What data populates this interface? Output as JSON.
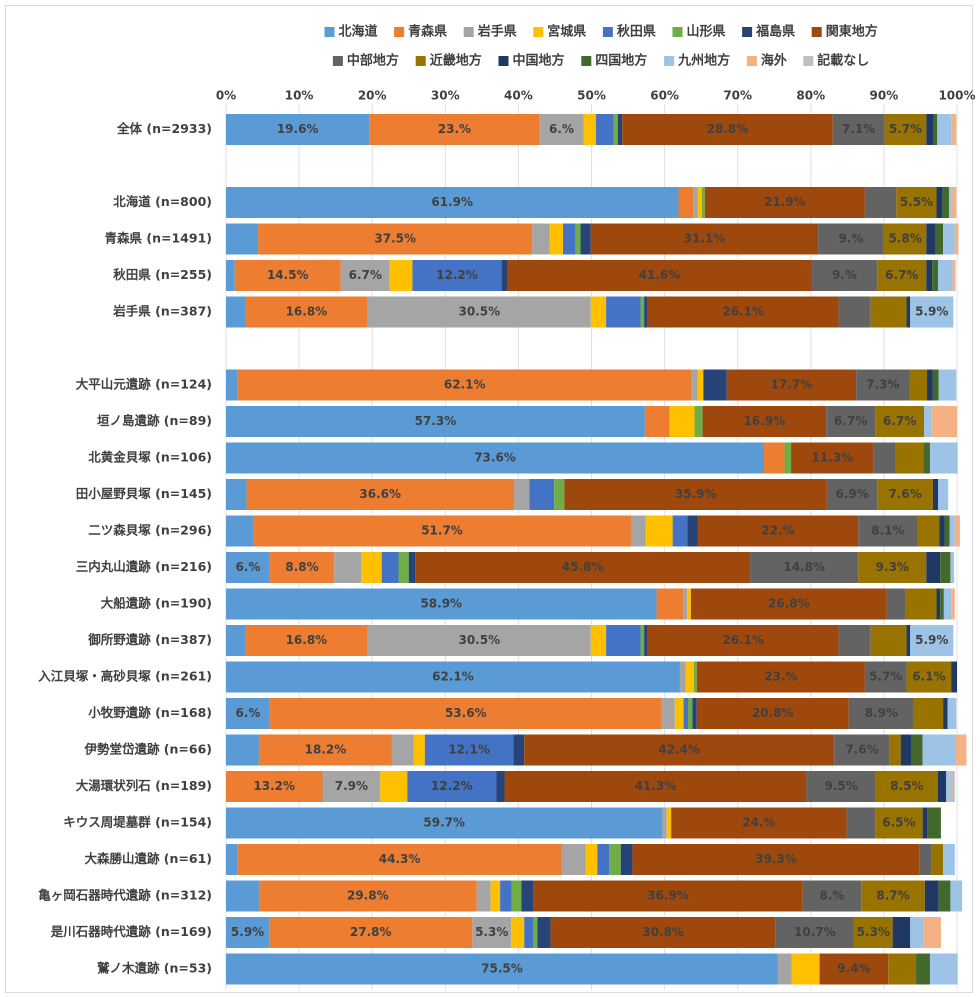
{
  "chart_data": {
    "type": "bar",
    "orientation": "horizontal",
    "stacked": "percent",
    "xlim": [
      0,
      100
    ],
    "x_ticks": [
      "0%",
      "10%",
      "20%",
      "30%",
      "40%",
      "50%",
      "60%",
      "70%",
      "80%",
      "90%",
      "100%"
    ],
    "gridlines": true,
    "legend_position": "top",
    "categories": [
      "全体 (n=2933)",
      "",
      "北海道 (n=800)",
      "青森県 (n=1491)",
      "秋田県 (n=255)",
      "岩手県 (n=387)",
      "",
      "大平山元遺跡 (n=124)",
      "垣ノ島遺跡 (n=89)",
      "北黄金貝塚 (n=106)",
      "田小屋野貝塚 (n=145)",
      "二ツ森貝塚 (n=296)",
      "三内丸山遺跡 (n=216)",
      "大船遺跡 (n=190)",
      "御所野遺跡 (n=387)",
      "入江貝塚・高砂貝塚 (n=261)",
      "小牧野遺跡 (n=168)",
      "伊勢堂岱遺跡 (n=66)",
      "大湯環状列石 (n=189)",
      "キウス周堤墓群 (n=154)",
      "大森勝山遺跡 (n=61)",
      "亀ヶ岡石器時代遺跡 (n=312)",
      "是川石器時代遺跡 (n=169)",
      "鷲ノ木遺跡 (n=53)"
    ],
    "series": [
      {
        "name": "北海道",
        "color": "#5b9bd5",
        "values": [
          19.6,
          null,
          61.9,
          4.4,
          1.2,
          2.6,
          null,
          1.6,
          57.3,
          73.6,
          2.8,
          3.7,
          6.0,
          58.9,
          2.6,
          62.1,
          6.0,
          4.5,
          0.0,
          59.7,
          1.6,
          4.5,
          5.9,
          75.5
        ]
      },
      {
        "name": "青森県",
        "color": "#ed7d31",
        "values": [
          23.3,
          null,
          2.0,
          37.5,
          14.5,
          16.8,
          null,
          62.1,
          3.4,
          2.8,
          36.6,
          51.7,
          8.8,
          3.7,
          16.8,
          0.0,
          53.6,
          18.2,
          13.2,
          0.0,
          44.3,
          29.8,
          27.8,
          0.0
        ]
      },
      {
        "name": "岩手県",
        "color": "#a5a5a5",
        "values": [
          6.0,
          null,
          0.6,
          2.4,
          6.7,
          30.5,
          null,
          0.8,
          0.0,
          0.0,
          2.1,
          2.0,
          3.7,
          0.5,
          30.5,
          0.8,
          1.8,
          3.0,
          7.9,
          0.6,
          3.3,
          1.9,
          5.3,
          1.9
        ]
      },
      {
        "name": "宮城県",
        "color": "#ffc000",
        "values": [
          1.7,
          null,
          0.6,
          1.8,
          3.1,
          2.1,
          null,
          0.8,
          3.4,
          0.0,
          0.0,
          3.7,
          2.8,
          0.5,
          2.1,
          1.1,
          1.2,
          1.5,
          3.7,
          0.6,
          1.6,
          1.3,
          1.8,
          3.8
        ]
      },
      {
        "name": "秋田県",
        "color": "#4472c4",
        "values": [
          2.4,
          null,
          0.0,
          1.7,
          12.2,
          4.7,
          null,
          0.0,
          0.0,
          0.0,
          3.4,
          2.0,
          2.3,
          0.0,
          4.7,
          0.0,
          0.6,
          12.1,
          12.2,
          0.0,
          1.6,
          1.6,
          1.2,
          0.0
        ]
      },
      {
        "name": "山形県",
        "color": "#70ad47",
        "values": [
          0.6,
          null,
          0.4,
          0.7,
          0.0,
          0.5,
          null,
          0.0,
          1.1,
          0.9,
          1.4,
          0.0,
          1.4,
          0.0,
          0.5,
          0.4,
          0.6,
          0.0,
          0.0,
          0.0,
          1.6,
          1.3,
          0.6,
          0.0
        ]
      },
      {
        "name": "福島県",
        "color": "#264478",
        "values": [
          0.6,
          null,
          0.0,
          1.4,
          0.8,
          0.5,
          null,
          3.2,
          0.0,
          0.0,
          0.0,
          1.4,
          0.9,
          0.0,
          0.5,
          0.0,
          0.6,
          1.5,
          1.1,
          0.0,
          1.6,
          1.6,
          1.8,
          0.0
        ]
      },
      {
        "name": "関東地方",
        "color": "#9e480e",
        "values": [
          28.8,
          null,
          21.9,
          31.1,
          41.6,
          26.1,
          null,
          17.7,
          16.9,
          11.3,
          35.9,
          22.0,
          45.8,
          26.8,
          26.1,
          23.0,
          20.8,
          42.4,
          41.3,
          24.0,
          39.3,
          36.9,
          30.8,
          9.4
        ]
      },
      {
        "name": "中部地方",
        "color": "#636363",
        "values": [
          7.1,
          null,
          4.3,
          9.0,
          9.0,
          4.4,
          null,
          7.3,
          6.7,
          3.0,
          6.9,
          8.1,
          14.8,
          2.6,
          4.4,
          5.7,
          8.9,
          7.6,
          9.5,
          3.9,
          1.6,
          8.0,
          10.7,
          0.0
        ]
      },
      {
        "name": "近畿地方",
        "color": "#997300",
        "values": [
          5.7,
          null,
          5.5,
          5.8,
          6.7,
          4.9,
          null,
          2.4,
          6.7,
          3.8,
          7.6,
          3.0,
          9.3,
          4.2,
          4.9,
          6.1,
          4.0,
          1.5,
          8.5,
          6.5,
          1.6,
          8.7,
          5.3,
          3.8
        ]
      },
      {
        "name": "中国地方",
        "color": "#203864",
        "values": [
          1.0,
          null,
          0.8,
          1.3,
          0.8,
          0.5,
          null,
          0.8,
          0.0,
          0.0,
          0.7,
          0.7,
          1.9,
          0.5,
          0.5,
          0.8,
          0.6,
          1.5,
          1.1,
          0.6,
          0.0,
          1.9,
          2.4,
          0.0
        ]
      },
      {
        "name": "四国地方",
        "color": "#43682b",
        "values": [
          0.5,
          null,
          0.9,
          1.0,
          0.8,
          0.0,
          null,
          0.8,
          0.0,
          0.9,
          0.0,
          0.7,
          1.4,
          0.5,
          0.0,
          0.0,
          0.0,
          1.5,
          0.0,
          1.9,
          0.0,
          1.6,
          0.0,
          1.9
        ]
      },
      {
        "name": "九州地方",
        "color": "#9dc3e6",
        "values": [
          1.9,
          null,
          0.4,
          1.6,
          2.0,
          5.9,
          null,
          2.4,
          1.1,
          3.8,
          1.4,
          0.7,
          0.5,
          1.0,
          5.9,
          0.0,
          1.2,
          4.5,
          0.5,
          0.0,
          1.6,
          1.6,
          1.8,
          3.8
        ]
      },
      {
        "name": "海外",
        "color": "#f4b183",
        "values": [
          0.7,
          null,
          0.6,
          0.5,
          0.4,
          0.0,
          null,
          0.0,
          3.4,
          0.0,
          0.0,
          0.7,
          0.0,
          0.5,
          0.0,
          0.0,
          0.0,
          1.5,
          0.0,
          0.0,
          0.0,
          0.0,
          2.4,
          0.0
        ]
      },
      {
        "name": "記載なし",
        "color": "#bfbfbf",
        "values": [
          0.0,
          null,
          0.0,
          0.0,
          0.0,
          0.0,
          null,
          0.0,
          0.0,
          0.0,
          0.0,
          0.0,
          0.0,
          0.0,
          0.0,
          0.0,
          0.0,
          0.0,
          0.7,
          0.0,
          0.0,
          0.0,
          0.0,
          0.0
        ]
      }
    ],
    "data_labels": [
      {
        "row": 0,
        "series": 0,
        "text": "19.6%"
      },
      {
        "row": 0,
        "series": 1,
        "text": "23.%"
      },
      {
        "row": 0,
        "series": 2,
        "text": "6.%"
      },
      {
        "row": 0,
        "series": 7,
        "text": "28.8%"
      },
      {
        "row": 0,
        "series": 8,
        "text": "7.1%"
      },
      {
        "row": 0,
        "series": 9,
        "text": "5.7%"
      },
      {
        "row": 2,
        "series": 0,
        "text": "61.9%"
      },
      {
        "row": 2,
        "series": 7,
        "text": "21.9%"
      },
      {
        "row": 2,
        "series": 9,
        "text": "5.5%"
      },
      {
        "row": 3,
        "series": 1,
        "text": "37.5%"
      },
      {
        "row": 3,
        "series": 7,
        "text": "31.1%"
      },
      {
        "row": 3,
        "series": 8,
        "text": "9.%"
      },
      {
        "row": 3,
        "series": 9,
        "text": "5.8%"
      },
      {
        "row": 4,
        "series": 1,
        "text": "14.5%"
      },
      {
        "row": 4,
        "series": 2,
        "text": "6.7%"
      },
      {
        "row": 4,
        "series": 4,
        "text": "12.2%"
      },
      {
        "row": 4,
        "series": 7,
        "text": "41.6%"
      },
      {
        "row": 4,
        "series": 8,
        "text": "9.%"
      },
      {
        "row": 4,
        "series": 9,
        "text": "6.7%"
      },
      {
        "row": 5,
        "series": 1,
        "text": "16.8%"
      },
      {
        "row": 5,
        "series": 2,
        "text": "30.5%"
      },
      {
        "row": 5,
        "series": 7,
        "text": "26.1%"
      },
      {
        "row": 5,
        "series": 12,
        "text": "5.9%"
      },
      {
        "row": 7,
        "series": 1,
        "text": "62.1%"
      },
      {
        "row": 7,
        "series": 7,
        "text": "17.7%"
      },
      {
        "row": 7,
        "series": 8,
        "text": "7.3%"
      },
      {
        "row": 8,
        "series": 0,
        "text": "57.3%"
      },
      {
        "row": 8,
        "series": 7,
        "text": "16.9%"
      },
      {
        "row": 8,
        "series": 8,
        "text": "6.7%"
      },
      {
        "row": 8,
        "series": 9,
        "text": "6.7%"
      },
      {
        "row": 9,
        "series": 0,
        "text": "73.6%"
      },
      {
        "row": 9,
        "series": 7,
        "text": "11.3%"
      },
      {
        "row": 10,
        "series": 1,
        "text": "36.6%"
      },
      {
        "row": 10,
        "series": 7,
        "text": "35.9%"
      },
      {
        "row": 10,
        "series": 8,
        "text": "6.9%"
      },
      {
        "row": 10,
        "series": 9,
        "text": "7.6%"
      },
      {
        "row": 11,
        "series": 1,
        "text": "51.7%"
      },
      {
        "row": 11,
        "series": 7,
        "text": "22.%"
      },
      {
        "row": 11,
        "series": 8,
        "text": "8.1%"
      },
      {
        "row": 12,
        "series": 0,
        "text": "6.%"
      },
      {
        "row": 12,
        "series": 1,
        "text": "8.8%"
      },
      {
        "row": 12,
        "series": 7,
        "text": "45.8%"
      },
      {
        "row": 12,
        "series": 8,
        "text": "14.8%"
      },
      {
        "row": 12,
        "series": 9,
        "text": "9.3%"
      },
      {
        "row": 13,
        "series": 0,
        "text": "58.9%"
      },
      {
        "row": 13,
        "series": 7,
        "text": "26.8%"
      },
      {
        "row": 14,
        "series": 1,
        "text": "16.8%"
      },
      {
        "row": 14,
        "series": 2,
        "text": "30.5%"
      },
      {
        "row": 14,
        "series": 7,
        "text": "26.1%"
      },
      {
        "row": 14,
        "series": 12,
        "text": "5.9%"
      },
      {
        "row": 15,
        "series": 0,
        "text": "62.1%"
      },
      {
        "row": 15,
        "series": 7,
        "text": "23.%"
      },
      {
        "row": 15,
        "series": 8,
        "text": "5.7%"
      },
      {
        "row": 15,
        "series": 9,
        "text": "6.1%"
      },
      {
        "row": 16,
        "series": 0,
        "text": "6.%"
      },
      {
        "row": 16,
        "series": 1,
        "text": "53.6%"
      },
      {
        "row": 16,
        "series": 7,
        "text": "20.8%"
      },
      {
        "row": 16,
        "series": 8,
        "text": "8.9%"
      },
      {
        "row": 17,
        "series": 1,
        "text": "18.2%"
      },
      {
        "row": 17,
        "series": 4,
        "text": "12.1%"
      },
      {
        "row": 17,
        "series": 7,
        "text": "42.4%"
      },
      {
        "row": 17,
        "series": 8,
        "text": "7.6%"
      },
      {
        "row": 18,
        "series": 1,
        "text": "13.2%"
      },
      {
        "row": 18,
        "series": 2,
        "text": "7.9%"
      },
      {
        "row": 18,
        "series": 4,
        "text": "12.2%"
      },
      {
        "row": 18,
        "series": 7,
        "text": "41.3%"
      },
      {
        "row": 18,
        "series": 8,
        "text": "9.5%"
      },
      {
        "row": 18,
        "series": 9,
        "text": "8.5%"
      },
      {
        "row": 19,
        "series": 0,
        "text": "59.7%"
      },
      {
        "row": 19,
        "series": 7,
        "text": "24.%"
      },
      {
        "row": 19,
        "series": 9,
        "text": "6.5%"
      },
      {
        "row": 20,
        "series": 1,
        "text": "44.3%"
      },
      {
        "row": 20,
        "series": 7,
        "text": "39.3%"
      },
      {
        "row": 21,
        "series": 1,
        "text": "29.8%"
      },
      {
        "row": 21,
        "series": 7,
        "text": "36.9%"
      },
      {
        "row": 21,
        "series": 8,
        "text": "8.%"
      },
      {
        "row": 21,
        "series": 9,
        "text": "8.7%"
      },
      {
        "row": 22,
        "series": 0,
        "text": "5.9%"
      },
      {
        "row": 22,
        "series": 1,
        "text": "27.8%"
      },
      {
        "row": 22,
        "series": 2,
        "text": "5.3%"
      },
      {
        "row": 22,
        "series": 7,
        "text": "30.8%"
      },
      {
        "row": 22,
        "series": 8,
        "text": "10.7%"
      },
      {
        "row": 22,
        "series": 9,
        "text": "5.3%"
      },
      {
        "row": 23,
        "series": 0,
        "text": "75.5%"
      },
      {
        "row": 23,
        "series": 7,
        "text": "9.4%"
      }
    ]
  }
}
